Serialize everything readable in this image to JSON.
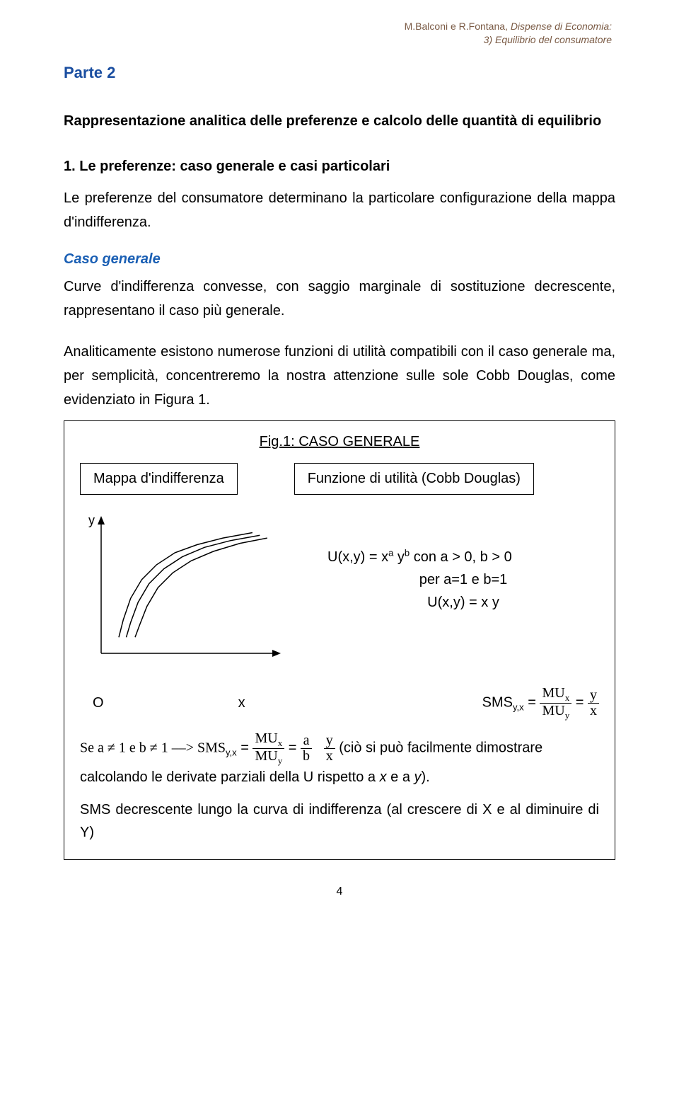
{
  "header": {
    "line1_plain": "M.Balconi e R.Fontana, ",
    "line1_italic": "Dispense di Economia:",
    "line2": "3) Equilibrio del consumatore"
  },
  "part_title": "Parte 2",
  "subtitle": "Rappresentazione analitica delle preferenze e calcolo delle quantità di equilibrio",
  "section1_heading": "1. Le preferenze: caso generale e casi particolari",
  "section1_body": "Le preferenze del consumatore determinano la particolare configurazione della mappa d'indifferenza.",
  "case_heading": "Caso generale",
  "case_body1": "Curve d'indifferenza convesse, con saggio marginale di sostituzione decrescente, rappresentano il caso più generale.",
  "case_body2": "Analiticamente esistono numerose funzioni di utilità compatibili con il caso generale ma, per semplicità, concentreremo la nostra attenzione sulle sole Cobb Douglas, come evidenziato in Figura 1.",
  "figure": {
    "caption": "Fig.1: CASO GENERALE",
    "label_left": "Mappa d'indifferenza",
    "label_right": "Funzione di utilità (Cobb Douglas)",
    "chart": {
      "type": "line",
      "axis_labels": {
        "x": "x",
        "y": "y",
        "origin": "O"
      },
      "axis_color": "#000000",
      "curve_color": "#000000",
      "background": "#ffffff",
      "xlim": [
        0,
        230
      ],
      "ylim": [
        0,
        190
      ],
      "curves": [
        [
          [
            24,
            24
          ],
          [
            30,
            50
          ],
          [
            40,
            82
          ],
          [
            55,
            110
          ],
          [
            75,
            132
          ],
          [
            100,
            150
          ],
          [
            130,
            162
          ],
          [
            165,
            172
          ],
          [
            205,
            180
          ]
        ],
        [
          [
            34,
            24
          ],
          [
            40,
            46
          ],
          [
            50,
            76
          ],
          [
            65,
            104
          ],
          [
            85,
            126
          ],
          [
            110,
            144
          ],
          [
            140,
            158
          ],
          [
            175,
            168
          ],
          [
            215,
            176
          ]
        ],
        [
          [
            46,
            24
          ],
          [
            52,
            42
          ],
          [
            62,
            70
          ],
          [
            77,
            98
          ],
          [
            97,
            120
          ],
          [
            122,
            138
          ],
          [
            152,
            152
          ],
          [
            188,
            164
          ],
          [
            225,
            172
          ]
        ]
      ],
      "line_width": 1.5
    },
    "rhs": {
      "u_general_prefix": "U(x,y) = x",
      "u_general_sup1": "a",
      "u_general_mid": " y",
      "u_general_sup2": "b",
      "u_general_suffix": " con a > 0, b > 0",
      "per_line": "per a=1 e b=1",
      "u_simple": "U(x,y) = x y"
    },
    "sms_line": {
      "origin": "O",
      "x_label": "x",
      "prefix": "SMS",
      "sub": "y,x",
      "eq": " = ",
      "frac1_num": "MU",
      "frac1_num_sub": "x",
      "frac1_den": "MU",
      "frac1_den_sub": "y",
      "eq2": " = ",
      "frac2_num": "y",
      "frac2_den": "x"
    },
    "bottom": {
      "line1_prefix": "Se a ≠ 1  e b ≠ 1  ––> SMS",
      "line1_sub": "y,x",
      "line1_eq": " = ",
      "f1_num": "MU",
      "f1_num_sub": "x",
      "f1_den": "MU",
      "f1_den_sub": "y",
      "line1_eq2": " = ",
      "f2_num": "a",
      "f2_den": "b",
      "f3_num": "y",
      "f3_den": "x",
      "line1_suffix": "   (ciò si può facilmente dimostrare",
      "line2": "calcolando le derivate parziali della U rispetto a x e a y).",
      "line3": "SMS decrescente lungo la curva di indifferenza (al crescere di X e al diminuire di Y)"
    }
  },
  "page_number": "4"
}
